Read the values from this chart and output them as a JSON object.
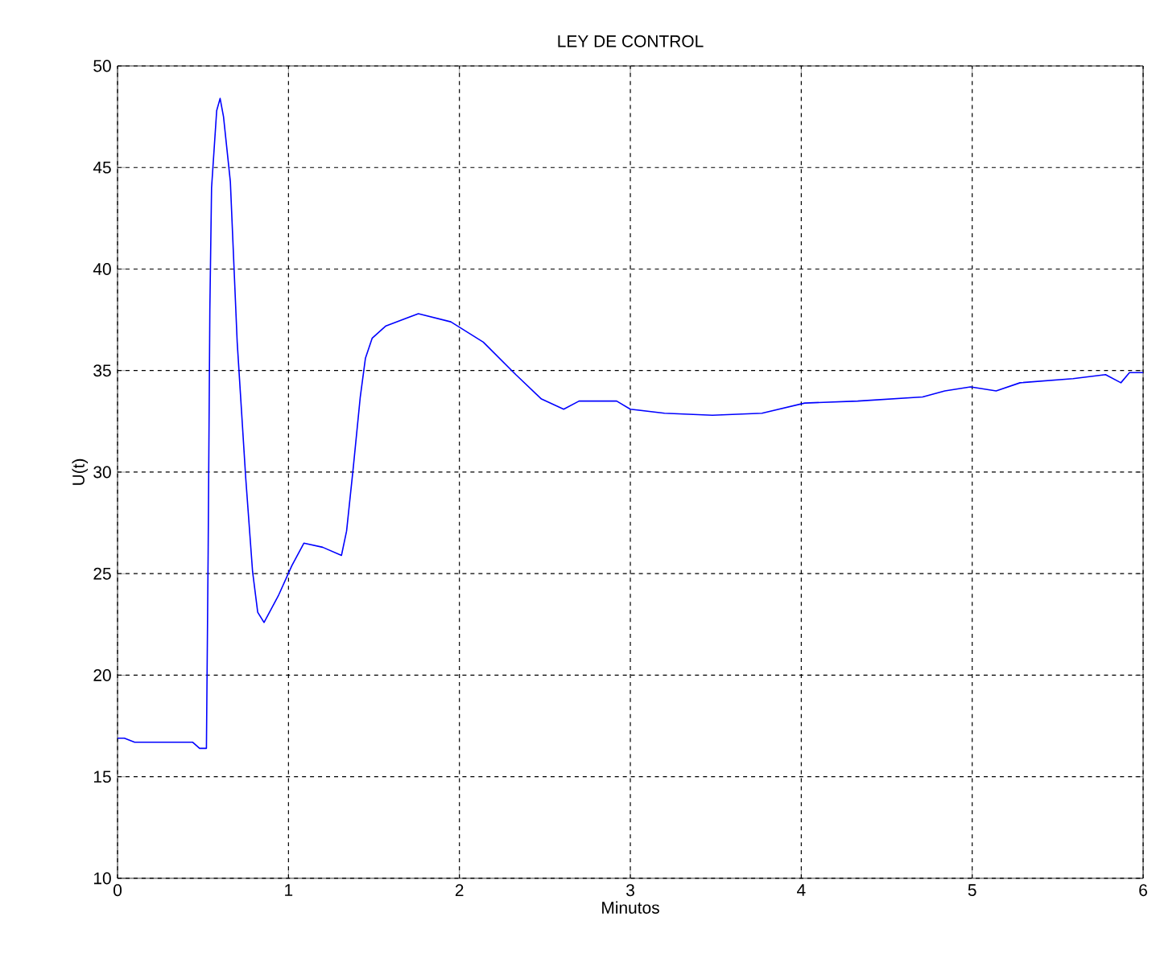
{
  "chart_data": {
    "type": "line",
    "title": "LEY DE CONTROL",
    "xlabel": "Minutos",
    "ylabel": "U(t)",
    "xlim": [
      0,
      6
    ],
    "ylim": [
      10,
      50
    ],
    "xticks": [
      0,
      1,
      2,
      3,
      4,
      5,
      6
    ],
    "yticks": [
      10,
      15,
      20,
      25,
      30,
      35,
      40,
      45,
      50
    ],
    "grid": true,
    "line_style": "solid",
    "marker": "none",
    "series": [
      {
        "color": "#0000ff",
        "x": [
          0,
          0.04,
          0.1,
          0.44,
          0.48,
          0.52,
          0.53,
          0.54,
          0.55,
          0.58,
          0.6,
          0.62,
          0.66,
          0.7,
          0.75,
          0.79,
          0.82,
          0.857,
          0.94,
          1.02,
          1.09,
          1.2,
          1.31,
          1.34,
          1.38,
          1.42,
          1.45,
          1.49,
          1.57,
          1.76,
          1.95,
          2.14,
          2.33,
          2.48,
          2.61,
          2.7,
          2.92,
          3.0,
          3.2,
          3.48,
          3.77,
          4.02,
          4.33,
          4.71,
          4.84,
          4.99,
          5.14,
          5.28,
          5.59,
          5.78,
          5.87,
          5.92,
          6
        ],
        "values": [
          16.9,
          16.9,
          16.7,
          16.7,
          16.4,
          16.4,
          26,
          38,
          44,
          47.8,
          48.4,
          47.5,
          44.3,
          36.4,
          29.7,
          25.1,
          23.1,
          22.6,
          23.9,
          25.4,
          26.5,
          26.3,
          25.9,
          27.1,
          30.3,
          33.7,
          35.6,
          36.6,
          37.2,
          37.8,
          37.4,
          36.4,
          34.8,
          33.6,
          33.1,
          33.5,
          33.5,
          33.1,
          32.9,
          32.8,
          32.9,
          33.4,
          33.5,
          33.7,
          34.0,
          34.2,
          34.0,
          34.4,
          34.6,
          34.8,
          34.4,
          34.9,
          34.9
        ]
      }
    ]
  }
}
